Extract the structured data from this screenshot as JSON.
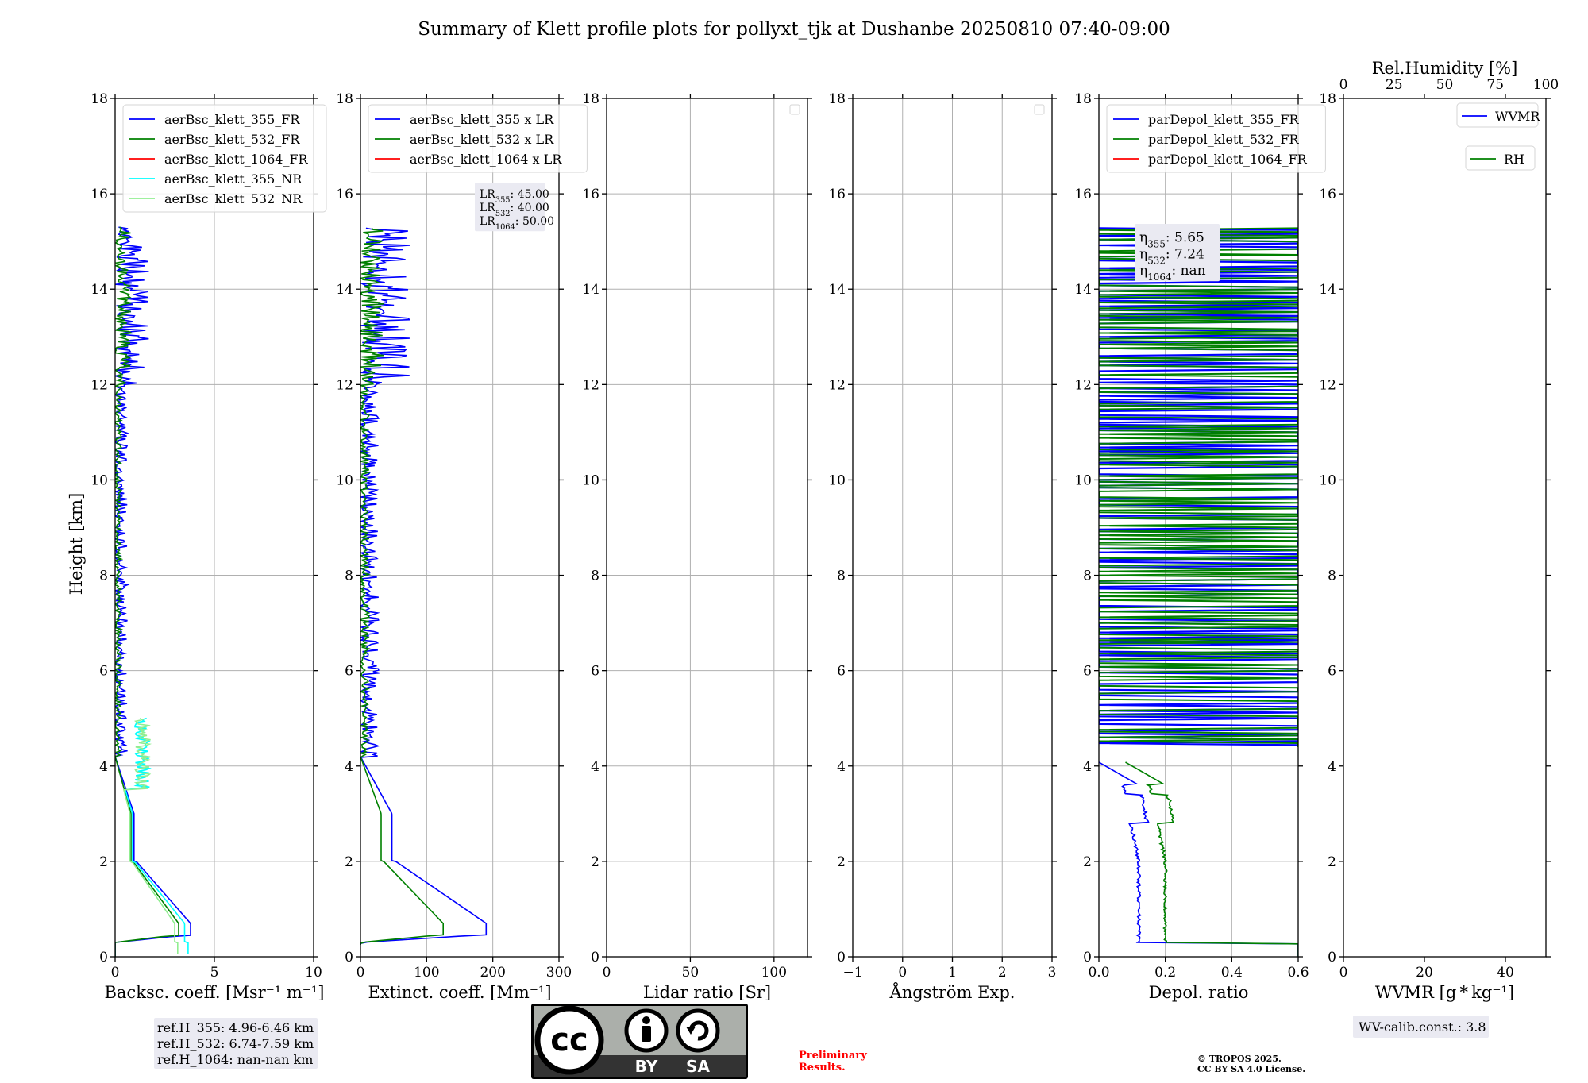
{
  "title": "Summary of Klett profile plots for pollyxt_tjk at Dushanbe 20250810 07:40-09:00",
  "ylabel": "Height [km]",
  "colors": {
    "blue": "#0000ff",
    "green": "#008000",
    "red": "#ff0000",
    "cyan": "#00ffff",
    "lightgreen": "#90ee90",
    "grid": "#b0b0b0",
    "boxbg": "#eaeaf2",
    "cc_gray": "#abafaa",
    "cc_dark": "#333333",
    "preliminary": "#ff0000"
  },
  "chart_data": [
    {
      "type": "line",
      "id": "backscatter",
      "xlabel": "Backsc. coeff. [Msr⁻¹ m⁻¹]",
      "xlim": [
        0,
        10
      ],
      "xticks": [
        "0",
        "5",
        "10"
      ],
      "ylim": [
        0,
        18
      ],
      "yticks": [
        "0",
        "2",
        "4",
        "6",
        "8",
        "10",
        "12",
        "14",
        "16",
        "18"
      ],
      "grid": true,
      "legend": "top-left",
      "series": [
        {
          "name": "aerBsc_klett_355_FR",
          "color": "blue"
        },
        {
          "name": "aerBsc_klett_532_FR",
          "color": "green"
        },
        {
          "name": "aerBsc_klett_1064_FR",
          "color": "red"
        },
        {
          "name": "aerBsc_klett_355_NR",
          "color": "cyan"
        },
        {
          "name": "aerBsc_klett_532_NR",
          "color": "lightgreen"
        }
      ],
      "annotation": [
        "ref.H_355: 4.96-6.46 km",
        "ref.H_532: 6.74-7.59 km",
        "ref.H_1064: nan-nan km"
      ]
    },
    {
      "type": "line",
      "id": "extinction",
      "xlabel": "Extinct. coeff. [Mm⁻¹]",
      "xlim": [
        0,
        300
      ],
      "xticks": [
        "0",
        "100",
        "200",
        "300"
      ],
      "ylim": [
        0,
        18
      ],
      "yticks": [
        "0",
        "2",
        "4",
        "6",
        "8",
        "10",
        "12",
        "14",
        "16",
        "18"
      ],
      "grid": true,
      "legend": "top-left",
      "series": [
        {
          "name": "aerBsc_klett_355 x LR",
          "color": "blue"
        },
        {
          "name": "aerBsc_klett_532 x LR",
          "color": "green"
        },
        {
          "name": "aerBsc_klett_1064 x LR",
          "color": "red"
        }
      ],
      "lr_box": [
        {
          "base": "LR",
          "sub": "355",
          "value": ": 45.00"
        },
        {
          "base": "LR",
          "sub": "532",
          "value": ": 40.00"
        },
        {
          "base": "LR",
          "sub": "1064",
          "value": ": 50.00"
        }
      ]
    },
    {
      "type": "line",
      "id": "lidarratio",
      "xlabel": "Lidar ratio [Sr]",
      "xlim": [
        0,
        120
      ],
      "xticks": [
        "0",
        "50",
        "100"
      ],
      "ylim": [
        0,
        18
      ],
      "yticks": [
        "0",
        "2",
        "4",
        "6",
        "8",
        "10",
        "12",
        "14",
        "16",
        "18"
      ],
      "grid": true,
      "legend": "top-right-empty",
      "series": []
    },
    {
      "type": "line",
      "id": "angstrom",
      "xlabel": "Ångström Exp.",
      "xlim": [
        -1,
        3
      ],
      "xticks": [
        "−1",
        "0",
        "1",
        "2",
        "3"
      ],
      "ylim": [
        0,
        18
      ],
      "yticks": [
        "0",
        "2",
        "4",
        "6",
        "8",
        "10",
        "12",
        "14",
        "16",
        "18"
      ],
      "grid": true,
      "legend": "top-right-empty",
      "series": []
    },
    {
      "type": "line",
      "id": "depol",
      "xlabel": "Depol. ratio",
      "xlim": [
        0,
        0.6
      ],
      "xticks": [
        "0.0",
        "0.2",
        "0.4",
        "0.6"
      ],
      "ylim": [
        0,
        18
      ],
      "yticks": [
        "0",
        "2",
        "4",
        "6",
        "8",
        "10",
        "12",
        "14",
        "16",
        "18"
      ],
      "grid": true,
      "legend": "top-left",
      "series": [
        {
          "name": "parDepol_klett_355_FR",
          "color": "blue"
        },
        {
          "name": "parDepol_klett_532_FR",
          "color": "green"
        },
        {
          "name": "parDepol_klett_1064_FR",
          "color": "red"
        }
      ],
      "eta_box": [
        {
          "base": "η",
          "sub": "355",
          "value": ": 5.65"
        },
        {
          "base": "η",
          "sub": "532",
          "value": ": 7.24"
        },
        {
          "base": "η",
          "sub": "1064",
          "value": ": nan"
        }
      ]
    },
    {
      "type": "line",
      "id": "wvmr",
      "xlabel": "WVMR [g * kg⁻¹]",
      "xlim": [
        0,
        50
      ],
      "xticks": [
        "0",
        "20",
        "40"
      ],
      "top_xlabel": "Rel.Humidity [%]",
      "top_xlim": [
        0,
        100
      ],
      "top_xticks": [
        "0",
        "25",
        "50",
        "75",
        "100"
      ],
      "ylim": [
        0,
        18
      ],
      "yticks": [
        "0",
        "2",
        "4",
        "6",
        "8",
        "10",
        "12",
        "14",
        "16",
        "18"
      ],
      "grid": false,
      "legend": "top-right",
      "series": [
        {
          "name": "WVMR",
          "color": "blue"
        },
        {
          "name": "RH",
          "color": "green"
        }
      ],
      "annotation": "WV-calib.const.: 3.8"
    }
  ],
  "footer": {
    "cc_by": "BY",
    "cc_sa": "SA",
    "cc_mark": "cc",
    "preliminary_line1": "Preliminary",
    "preliminary_line2": "Results.",
    "tropos_line1": "© TROPOS 2025.",
    "tropos_line2": "CC BY SA 4.0 License."
  }
}
